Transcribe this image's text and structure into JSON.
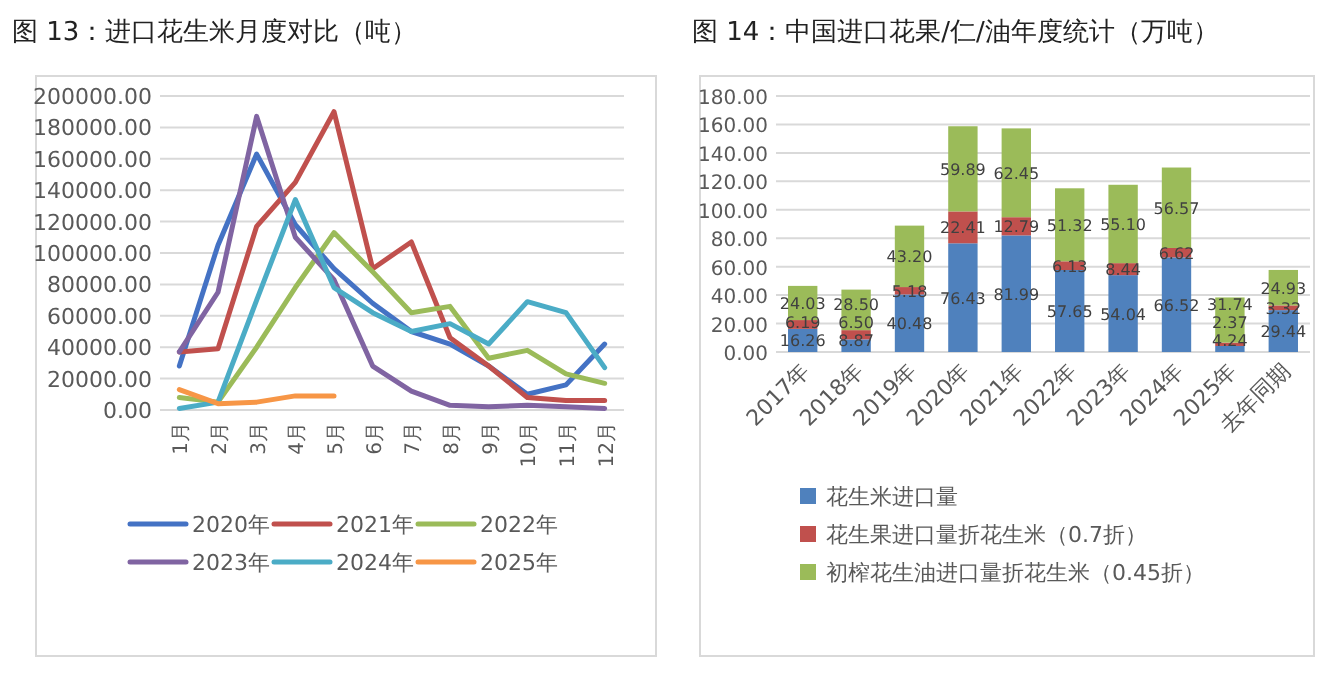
{
  "chart_data": [
    {
      "type": "line",
      "title": "图 13：进口花生米月度对比（吨）",
      "categories": [
        "1月",
        "2月",
        "3月",
        "4月",
        "5月",
        "6月",
        "7月",
        "8月",
        "9月",
        "10月",
        "11月",
        "12月"
      ],
      "series": [
        {
          "name": "2020年",
          "color": "#4472c4",
          "values": [
            28000,
            105000,
            163000,
            118000,
            90000,
            68000,
            50000,
            42000,
            28000,
            10000,
            16000,
            42000
          ]
        },
        {
          "name": "2021年",
          "color": "#c0504d",
          "values": [
            37000,
            39000,
            117000,
            145000,
            190000,
            90000,
            107000,
            46000,
            28000,
            8000,
            6000,
            6000
          ]
        },
        {
          "name": "2022年",
          "color": "#9bbb59",
          "values": [
            8000,
            5000,
            40000,
            78000,
            113000,
            88000,
            62000,
            66000,
            33000,
            38000,
            23000,
            17000
          ]
        },
        {
          "name": "2023年",
          "color": "#8064a2",
          "values": [
            37000,
            75000,
            187000,
            110000,
            83000,
            28000,
            12000,
            3000,
            2000,
            3000,
            2000,
            1000
          ]
        },
        {
          "name": "2024年",
          "color": "#4bacc6",
          "values": [
            1000,
            5000,
            70000,
            134000,
            78000,
            62000,
            50000,
            55000,
            42000,
            69000,
            62000,
            27000
          ]
        },
        {
          "name": "2025年",
          "color": "#f79646",
          "values": [
            13000,
            4000,
            5000,
            9000,
            9000,
            null,
            null,
            null,
            null,
            null,
            null,
            null
          ]
        }
      ],
      "ylim": [
        0,
        200000
      ],
      "yticks": [
        {
          "value": 0,
          "label": "0.00"
        },
        {
          "value": 20000,
          "label": "20000.00"
        },
        {
          "value": 40000,
          "label": "40000.00"
        },
        {
          "value": 60000,
          "label": "60000.00"
        },
        {
          "value": 80000,
          "label": "80000.00"
        },
        {
          "value": 100000,
          "label": "100000.00"
        },
        {
          "value": 120000,
          "label": "120000.00"
        },
        {
          "value": 140000,
          "label": "140000.00"
        },
        {
          "value": 160000,
          "label": "160000.00"
        },
        {
          "value": 180000,
          "label": "180000.00"
        },
        {
          "value": 200000,
          "label": "200000.00"
        }
      ],
      "grid": "y",
      "legend": "bottom",
      "marker": "none",
      "line_style": "solid"
    },
    {
      "type": "bar",
      "title": "图 14：中国进口花果/仁/油年度统计（万吨）",
      "categories": [
        "2017年",
        "2018年",
        "2019年",
        "2020年",
        "2021年",
        "2022年",
        "2023年",
        "2024年",
        "2025年",
        "去年同期"
      ],
      "stacked": true,
      "series": [
        {
          "name": "花生米进口量",
          "color": "#4f81bd",
          "values": [
            16.26,
            8.87,
            40.48,
            76.43,
            81.99,
            57.65,
            54.04,
            66.52,
            4.24,
            29.44
          ],
          "value_labels": [
            "16.26",
            "8.87",
            "40.48",
            "76.43",
            "81.99",
            "57.65",
            "54.04",
            "66.52",
            "4.24",
            "29.44"
          ]
        },
        {
          "name": "花生果进口量折花生米（0.7折）",
          "color": "#c0504d",
          "values": [
            6.19,
            6.5,
            5.18,
            22.41,
            12.79,
            6.13,
            8.44,
            6.62,
            2.37,
            3.32
          ],
          "value_labels": [
            "6.19",
            "6.50",
            "5.18",
            "22.41",
            "12.79",
            "6.13",
            "8.44",
            "6.62",
            "2.37",
            "3.32"
          ]
        },
        {
          "name": "初榨花生油进口量折花生米（0.45折）",
          "color": "#9bbb59",
          "values": [
            24.03,
            28.5,
            43.2,
            59.89,
            62.45,
            51.32,
            55.1,
            56.57,
            31.74,
            24.93
          ],
          "value_labels": [
            "24.03",
            "28.50",
            "43.20",
            "59.89",
            "62.45",
            "51.32",
            "55.10",
            "56.57",
            "31.74",
            "24.93"
          ]
        }
      ],
      "ylim": [
        0,
        180
      ],
      "yticks": [
        {
          "value": 0,
          "label": "0.00"
        },
        {
          "value": 20,
          "label": "20.00"
        },
        {
          "value": 40,
          "label": "40.00"
        },
        {
          "value": 60,
          "label": "60.00"
        },
        {
          "value": 80,
          "label": "80.00"
        },
        {
          "value": 100,
          "label": "100.00"
        },
        {
          "value": 120,
          "label": "120.00"
        },
        {
          "value": 140,
          "label": "140.00"
        },
        {
          "value": 160,
          "label": "160.00"
        },
        {
          "value": 180,
          "label": "180.00"
        }
      ],
      "grid": "y",
      "legend": "bottom"
    }
  ]
}
